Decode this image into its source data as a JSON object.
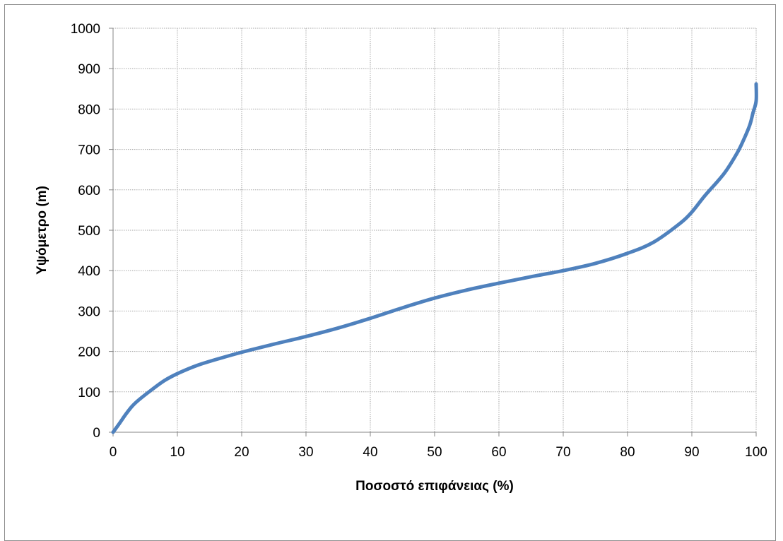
{
  "chart_data": {
    "type": "line",
    "title": "",
    "xlabel": "Ποσοστό επιφάνειας (%)",
    "ylabel": "Υψόμετρο (m)",
    "xlim": [
      0,
      100
    ],
    "ylim": [
      0,
      1000
    ],
    "x_ticks": [
      "0",
      "10",
      "20",
      "30",
      "40",
      "50",
      "60",
      "70",
      "80",
      "90",
      "100"
    ],
    "y_ticks": [
      "0",
      "100",
      "200",
      "300",
      "400",
      "500",
      "600",
      "700",
      "800",
      "900",
      "1000"
    ],
    "grid": true,
    "legend": "none",
    "line_color": "#4F81BD",
    "series": [
      {
        "x": [
          0,
          1,
          2,
          3,
          4,
          6,
          8,
          10,
          13,
          16,
          20,
          25,
          30,
          35,
          40,
          45,
          50,
          55,
          60,
          65,
          70,
          75,
          80,
          84,
          88,
          90,
          92,
          95,
          97,
          98,
          99,
          99.5,
          100,
          100
        ],
        "y": [
          0,
          22,
          45,
          65,
          80,
          105,
          128,
          145,
          165,
          180,
          198,
          218,
          237,
          258,
          282,
          308,
          332,
          352,
          369,
          385,
          400,
          418,
          443,
          470,
          515,
          545,
          585,
          640,
          690,
          722,
          760,
          790,
          820,
          862
        ]
      }
    ]
  }
}
